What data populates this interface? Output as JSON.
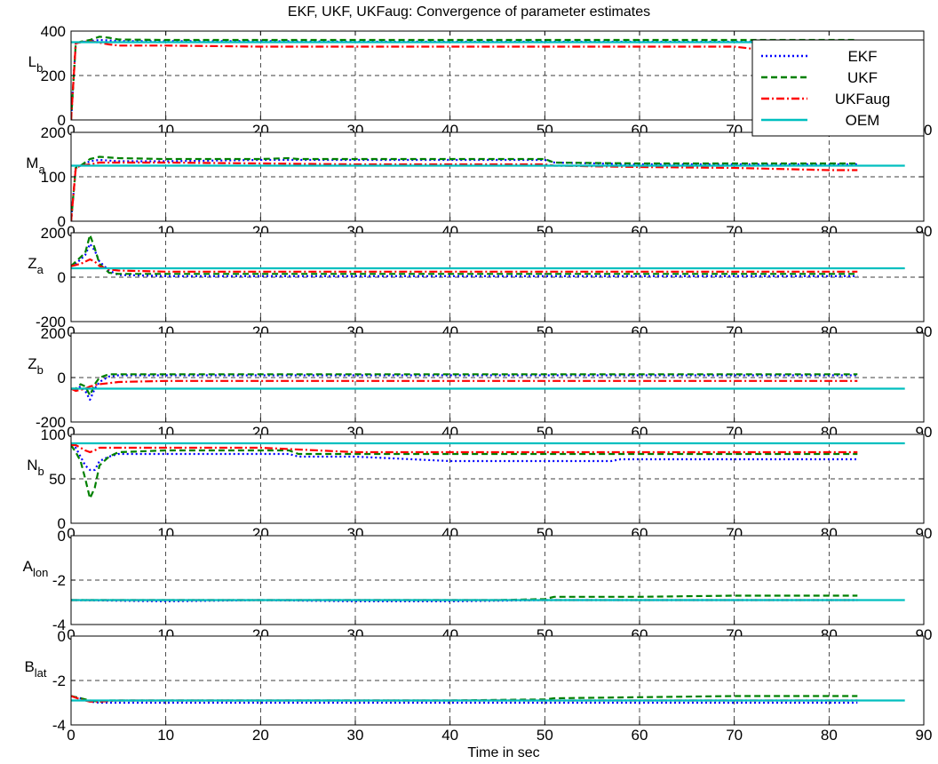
{
  "figure": {
    "title": "EKF, UKF, UKFaug: Convergence of parameter estimates",
    "xlabel": "Time in sec"
  },
  "legend": {
    "placement": "top-right",
    "entries": [
      {
        "label": "EKF",
        "color": "#0000ff",
        "style": "dotted"
      },
      {
        "label": "UKF",
        "color": "#008000",
        "style": "dashed"
      },
      {
        "label": "UKFaug",
        "color": "#ff0000",
        "style": "dashdot"
      },
      {
        "label": "OEM",
        "color": "#00bfbf",
        "style": "solid"
      }
    ]
  },
  "chart_data": [
    {
      "type": "line",
      "ylabel": "L",
      "ylabel_sub": "b",
      "xlim": [
        0,
        90
      ],
      "ylim": [
        0,
        400
      ],
      "xticks": [
        0,
        10,
        20,
        30,
        40,
        50,
        60,
        70,
        80,
        90
      ],
      "yticks": [
        0,
        200,
        400
      ],
      "grid": true,
      "series": [
        {
          "name": "EKF",
          "x": [
            0,
            0.5,
            1,
            2,
            3,
            4,
            5,
            10,
            20,
            30,
            40,
            50,
            60,
            70,
            80,
            83
          ],
          "y": [
            0,
            345,
            350,
            355,
            360,
            358,
            355,
            355,
            355,
            352,
            352,
            352,
            352,
            352,
            352,
            352
          ]
        },
        {
          "name": "UKF",
          "x": [
            0,
            0.5,
            1,
            2,
            3,
            4,
            5,
            10,
            20,
            30,
            40,
            50,
            60,
            70,
            80,
            83
          ],
          "y": [
            0,
            345,
            352,
            360,
            375,
            370,
            362,
            360,
            360,
            360,
            360,
            360,
            360,
            360,
            360,
            360
          ]
        },
        {
          "name": "UKFaug",
          "x": [
            0,
            0.5,
            1,
            2,
            3,
            4,
            5,
            10,
            20,
            30,
            40,
            50,
            60,
            70,
            72,
            73,
            80,
            83
          ],
          "y": [
            0,
            345,
            350,
            355,
            348,
            340,
            335,
            335,
            330,
            330,
            330,
            330,
            330,
            330,
            320,
            345,
            345,
            345
          ]
        },
        {
          "name": "OEM",
          "x": [
            0,
            88
          ],
          "y": [
            350,
            350
          ]
        }
      ]
    },
    {
      "type": "line",
      "ylabel": "M",
      "ylabel_sub": "a",
      "xlim": [
        0,
        90
      ],
      "ylim": [
        0,
        200
      ],
      "xticks": [
        0,
        10,
        20,
        30,
        40,
        50,
        60,
        70,
        80,
        90
      ],
      "yticks": [
        0,
        100,
        200
      ],
      "grid": true,
      "series": [
        {
          "name": "EKF",
          "x": [
            0,
            0.5,
            1,
            2,
            3,
            5,
            10,
            20,
            30,
            40,
            50,
            51,
            60,
            70,
            80,
            83
          ],
          "y": [
            0,
            120,
            125,
            135,
            138,
            135,
            135,
            138,
            138,
            138,
            138,
            132,
            128,
            128,
            128,
            128
          ]
        },
        {
          "name": "UKF",
          "x": [
            0,
            0.5,
            1,
            2,
            3,
            5,
            10,
            20,
            23,
            24,
            30,
            40,
            50,
            51,
            60,
            70,
            80,
            83
          ],
          "y": [
            0,
            120,
            125,
            140,
            145,
            142,
            140,
            140,
            142,
            140,
            140,
            140,
            140,
            132,
            130,
            130,
            130,
            130
          ]
        },
        {
          "name": "UKFaug",
          "x": [
            0,
            0.5,
            1,
            2,
            3,
            5,
            10,
            20,
            30,
            40,
            50,
            51,
            60,
            70,
            80,
            83
          ],
          "y": [
            0,
            120,
            125,
            128,
            132,
            132,
            132,
            130,
            128,
            128,
            128,
            125,
            122,
            120,
            115,
            115
          ]
        },
        {
          "name": "OEM",
          "x": [
            0,
            88
          ],
          "y": [
            125,
            125
          ]
        }
      ]
    },
    {
      "type": "line",
      "ylabel": "Z",
      "ylabel_sub": "a",
      "xlim": [
        0,
        90
      ],
      "ylim": [
        -200,
        200
      ],
      "xticks": [
        0,
        10,
        20,
        30,
        40,
        50,
        60,
        70,
        80,
        90
      ],
      "yticks": [
        -200,
        0,
        200
      ],
      "grid": true,
      "series": [
        {
          "name": "EKF",
          "x": [
            0,
            0.5,
            1,
            1.5,
            2,
            2.5,
            3,
            4,
            5,
            10,
            20,
            30,
            40,
            50,
            60,
            70,
            80,
            83
          ],
          "y": [
            50,
            60,
            80,
            100,
            150,
            120,
            70,
            30,
            10,
            5,
            5,
            5,
            5,
            5,
            5,
            5,
            5,
            5
          ]
        },
        {
          "name": "UKF",
          "x": [
            0,
            0.5,
            1,
            1.5,
            2,
            2.5,
            3,
            4,
            5,
            10,
            20,
            30,
            40,
            50,
            60,
            70,
            80,
            83
          ],
          "y": [
            50,
            70,
            90,
            110,
            190,
            130,
            60,
            20,
            15,
            15,
            15,
            15,
            15,
            15,
            15,
            15,
            15,
            15
          ]
        },
        {
          "name": "UKFaug",
          "x": [
            0,
            0.5,
            1,
            1.5,
            2,
            2.5,
            3,
            4,
            5,
            10,
            20,
            30,
            40,
            50,
            60,
            70,
            80,
            83
          ],
          "y": [
            50,
            55,
            60,
            70,
            80,
            70,
            50,
            35,
            30,
            25,
            25,
            25,
            25,
            25,
            25,
            25,
            25,
            25
          ]
        },
        {
          "name": "OEM",
          "x": [
            0,
            88
          ],
          "y": [
            40,
            40
          ]
        }
      ]
    },
    {
      "type": "line",
      "ylabel": "Z",
      "ylabel_sub": "b",
      "xlim": [
        0,
        90
      ],
      "ylim": [
        -200,
        200
      ],
      "xticks": [
        0,
        10,
        20,
        30,
        40,
        50,
        60,
        70,
        80,
        90
      ],
      "yticks": [
        -200,
        0,
        200
      ],
      "grid": true,
      "series": [
        {
          "name": "EKF",
          "x": [
            0,
            0.5,
            1,
            1.5,
            2,
            2.5,
            3,
            4,
            5,
            10,
            20,
            30,
            40,
            50,
            60,
            70,
            80,
            83
          ],
          "y": [
            -50,
            -55,
            -40,
            -60,
            -100,
            -50,
            -20,
            5,
            10,
            10,
            10,
            10,
            10,
            10,
            10,
            10,
            10,
            10
          ]
        },
        {
          "name": "UKF",
          "x": [
            0,
            0.5,
            1,
            1.5,
            2,
            2.5,
            3,
            4,
            5,
            10,
            20,
            30,
            40,
            50,
            60,
            70,
            80,
            83
          ],
          "y": [
            -50,
            -50,
            -30,
            -40,
            -80,
            -30,
            0,
            15,
            15,
            15,
            15,
            15,
            15,
            15,
            15,
            15,
            15,
            15
          ]
        },
        {
          "name": "UKFaug",
          "x": [
            0,
            0.5,
            1,
            1.5,
            2,
            2.5,
            3,
            4,
            5,
            10,
            20,
            30,
            40,
            50,
            60,
            70,
            80,
            83
          ],
          "y": [
            -50,
            -60,
            -55,
            -50,
            -40,
            -35,
            -30,
            -25,
            -20,
            -15,
            -15,
            -15,
            -15,
            -15,
            -15,
            -15,
            -15,
            -15
          ]
        },
        {
          "name": "OEM",
          "x": [
            0,
            88
          ],
          "y": [
            -50,
            -50
          ]
        }
      ]
    },
    {
      "type": "line",
      "ylabel": "N",
      "ylabel_sub": "b",
      "xlim": [
        0,
        90
      ],
      "ylim": [
        0,
        100
      ],
      "xticks": [
        0,
        10,
        20,
        30,
        40,
        50,
        60,
        70,
        80,
        90
      ],
      "yticks": [
        0,
        50,
        100
      ],
      "grid": true,
      "series": [
        {
          "name": "EKF",
          "x": [
            0,
            0.5,
            1,
            1.5,
            2,
            2.5,
            3,
            4,
            5,
            10,
            20,
            23,
            24,
            30,
            40,
            50,
            57,
            58,
            60,
            70,
            80,
            83
          ],
          "y": [
            88,
            85,
            75,
            65,
            60,
            60,
            70,
            75,
            78,
            78,
            78,
            78,
            75,
            75,
            70,
            70,
            70,
            72,
            72,
            72,
            72,
            72
          ]
        },
        {
          "name": "UKF",
          "x": [
            0,
            0.5,
            1,
            1.5,
            2,
            2.5,
            3,
            4,
            5,
            10,
            20,
            23,
            24,
            30,
            40,
            50,
            60,
            70,
            80,
            83
          ],
          "y": [
            88,
            80,
            70,
            50,
            28,
            40,
            65,
            75,
            80,
            82,
            82,
            82,
            78,
            78,
            78,
            78,
            78,
            78,
            78,
            78
          ]
        },
        {
          "name": "UKFaug",
          "x": [
            0,
            0.5,
            1,
            1.5,
            2,
            2.5,
            3,
            4,
            5,
            10,
            20,
            30,
            40,
            50,
            60,
            70,
            80,
            83
          ],
          "y": [
            88,
            88,
            85,
            82,
            80,
            82,
            85,
            85,
            85,
            85,
            85,
            80,
            80,
            80,
            80,
            80,
            80,
            80
          ]
        },
        {
          "name": "OEM",
          "x": [
            0,
            88
          ],
          "y": [
            90,
            90
          ]
        }
      ]
    },
    {
      "type": "line",
      "ylabel": "A",
      "ylabel_sub": "lon",
      "xlim": [
        0,
        90
      ],
      "ylim": [
        -4,
        0
      ],
      "xticks": [
        0,
        10,
        20,
        30,
        40,
        50,
        60,
        70,
        80,
        90
      ],
      "yticks": [
        -4,
        -2,
        0
      ],
      "grid": true,
      "series": [
        {
          "name": "EKF",
          "x": [
            0,
            10,
            20,
            30,
            40,
            50,
            60,
            70,
            80,
            83
          ],
          "y": [
            -2.9,
            -2.95,
            -2.9,
            -2.95,
            -2.95,
            -2.9,
            -2.9,
            -2.9,
            -2.9,
            -2.9
          ]
        },
        {
          "name": "UKF",
          "x": [
            0,
            10,
            20,
            30,
            40,
            45,
            50,
            51,
            60,
            70,
            80,
            83
          ],
          "y": [
            -2.9,
            -2.9,
            -2.9,
            -2.9,
            -2.9,
            -2.9,
            -2.85,
            -2.75,
            -2.75,
            -2.7,
            -2.7,
            -2.7
          ]
        },
        {
          "name": "UKFaug",
          "x": [
            0,
            10,
            20,
            30,
            40,
            50,
            60,
            70,
            80,
            83
          ],
          "y": [
            -2.9,
            -2.9,
            -2.9,
            -2.9,
            -2.9,
            -2.9,
            -2.9,
            -2.9,
            -2.9,
            -2.9
          ]
        },
        {
          "name": "OEM",
          "x": [
            0,
            88
          ],
          "y": [
            -2.9,
            -2.9
          ]
        }
      ]
    },
    {
      "type": "line",
      "ylabel": "B",
      "ylabel_sub": "lat",
      "xlim": [
        0,
        90
      ],
      "ylim": [
        -4,
        0
      ],
      "xticks": [
        0,
        10,
        20,
        30,
        40,
        50,
        60,
        70,
        80,
        90
      ],
      "yticks": [
        -4,
        -2,
        0
      ],
      "grid": true,
      "series": [
        {
          "name": "EKF",
          "x": [
            0,
            1,
            2,
            3,
            4,
            5,
            10,
            20,
            30,
            40,
            50,
            60,
            70,
            80,
            83
          ],
          "y": [
            -2.7,
            -2.8,
            -2.95,
            -3.0,
            -3.0,
            -3.0,
            -3.0,
            -3.0,
            -3.0,
            -3.0,
            -3.0,
            -3.0,
            -3.0,
            -3.0,
            -3.0
          ]
        },
        {
          "name": "UKF",
          "x": [
            0,
            1,
            2,
            3,
            4,
            5,
            10,
            20,
            30,
            40,
            50,
            51,
            60,
            70,
            80,
            83
          ],
          "y": [
            -2.7,
            -2.8,
            -2.9,
            -2.95,
            -2.9,
            -2.9,
            -2.9,
            -2.9,
            -2.9,
            -2.9,
            -2.85,
            -2.8,
            -2.75,
            -2.7,
            -2.7,
            -2.7
          ]
        },
        {
          "name": "UKFaug",
          "x": [
            0,
            1,
            2,
            3,
            5,
            10,
            20,
            30,
            40,
            50,
            60,
            70,
            80,
            83
          ],
          "y": [
            -2.7,
            -2.85,
            -2.95,
            -2.95,
            -2.9,
            -2.9,
            -2.9,
            -2.9,
            -2.9,
            -2.9,
            -2.9,
            -2.9,
            -2.9,
            -2.9
          ]
        },
        {
          "name": "OEM",
          "x": [
            0,
            88
          ],
          "y": [
            -2.9,
            -2.9
          ]
        }
      ]
    }
  ]
}
